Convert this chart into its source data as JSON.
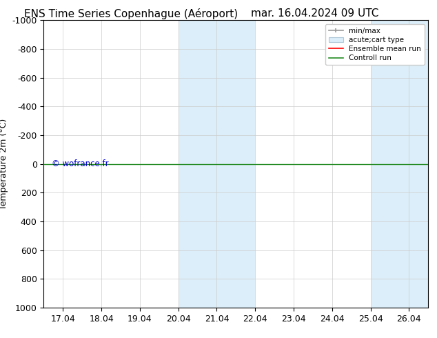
{
  "title_left": "ENS Time Series Copenhague (Aéroport)",
  "title_right": "mar. 16.04.2024 09 UTC",
  "ylabel": "Temperature 2m (°C)",
  "ylim_bottom": 1000,
  "ylim_top": -1000,
  "yticks": [
    -1000,
    -800,
    -600,
    -400,
    -200,
    0,
    200,
    400,
    600,
    800,
    1000
  ],
  "xtick_labels": [
    "17.04",
    "18.04",
    "19.04",
    "20.04",
    "21.04",
    "22.04",
    "23.04",
    "24.04",
    "25.04",
    "26.04"
  ],
  "xtick_positions": [
    0,
    1,
    2,
    3,
    4,
    5,
    6,
    7,
    8,
    9
  ],
  "xlim_min": -0.5,
  "xlim_max": 9.5,
  "shaded_regions": [
    {
      "x_start": 3,
      "x_end": 5,
      "color": "#dceef9"
    },
    {
      "x_start": 8,
      "x_end": 9.5,
      "color": "#dceef9"
    }
  ],
  "control_run_y": 0,
  "control_run_color": "#228B22",
  "ensemble_mean_color": "#FF0000",
  "minmax_color": "#999999",
  "acute_color": "#dceef9",
  "watermark_text": "© wofrance.fr",
  "watermark_color": "#0000CD",
  "background_color": "#ffffff",
  "legend_entries": [
    "min/max",
    "acute;cart type",
    "Ensemble mean run",
    "Controll run"
  ],
  "legend_colors": [
    "#999999",
    "#dceef9",
    "#FF0000",
    "#228B22"
  ],
  "title_fontsize": 11,
  "tick_fontsize": 9,
  "ylabel_fontsize": 9
}
